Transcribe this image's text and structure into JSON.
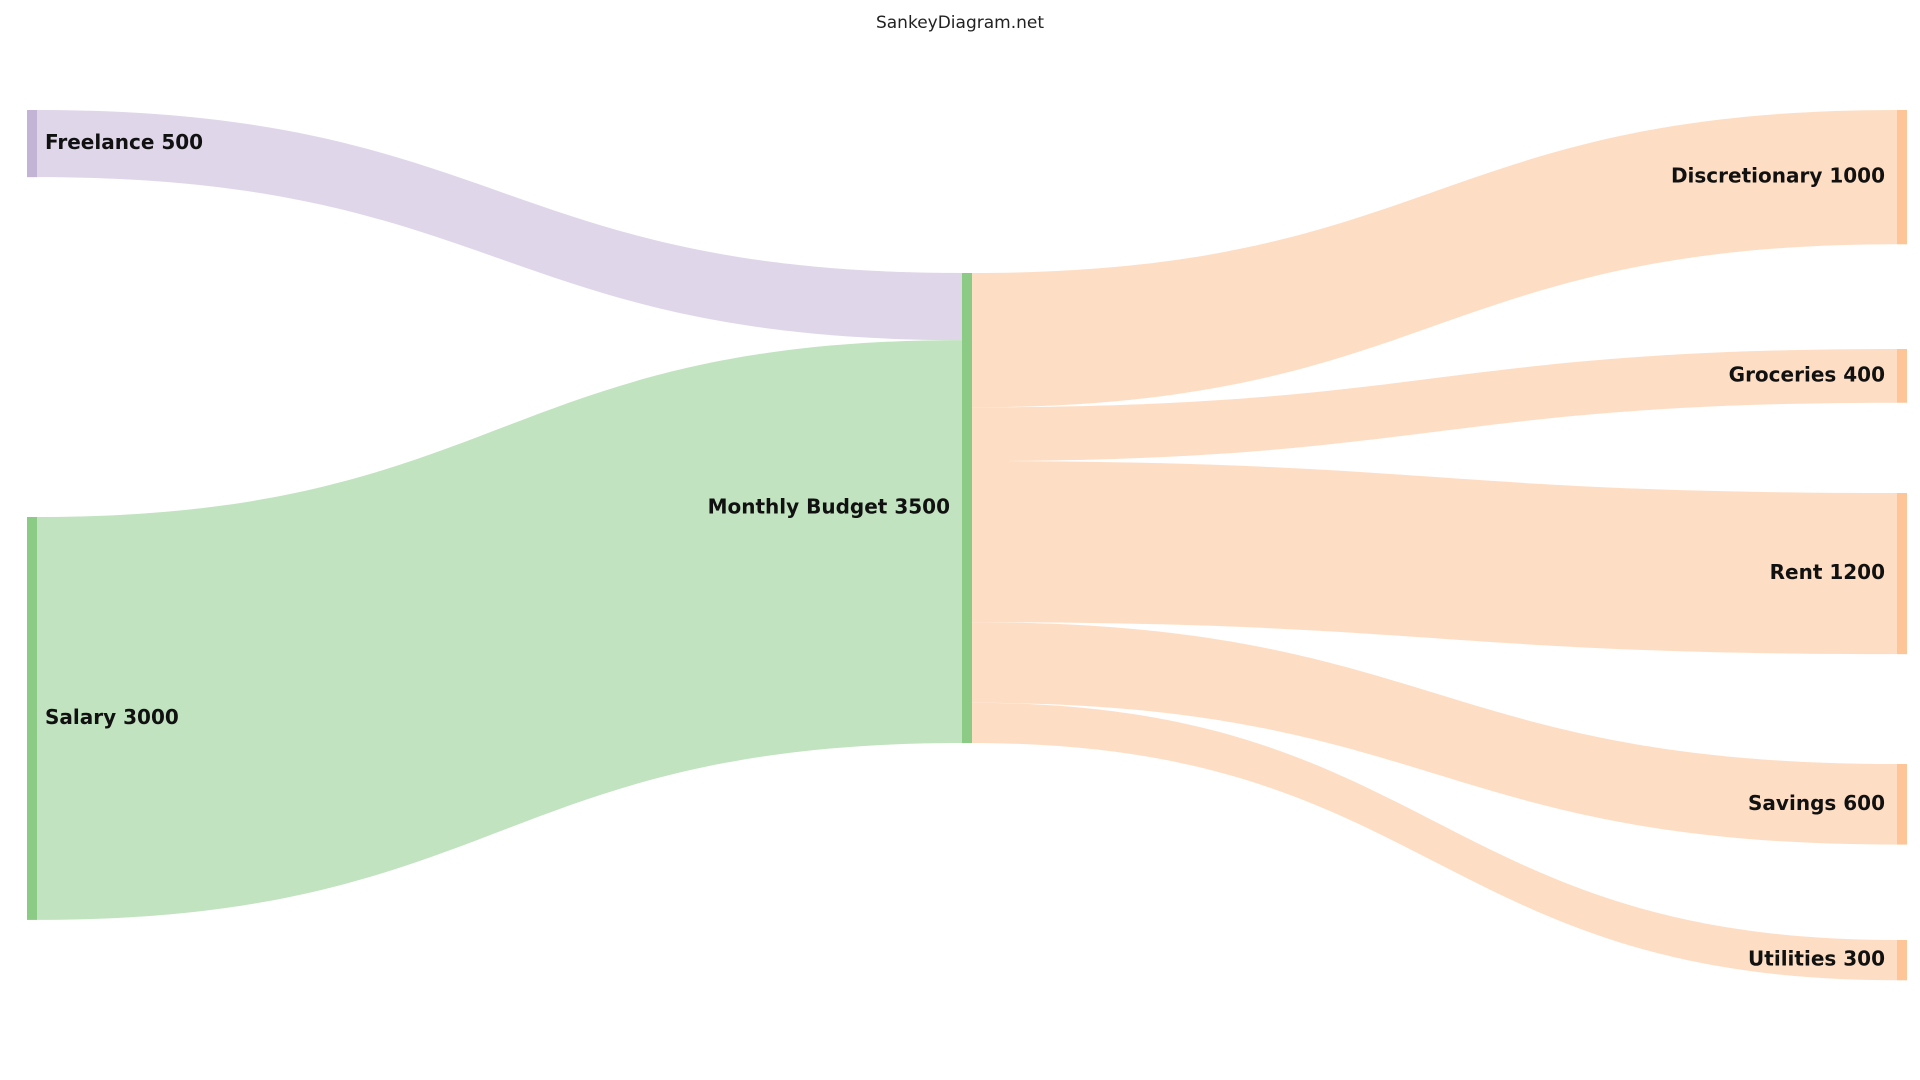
{
  "watermark": "SankeyDiagram.net",
  "nodes": [
    {
      "id": "freelance",
      "label": "Freelance 500",
      "column": 0,
      "color": "#c3b4d6"
    },
    {
      "id": "salary",
      "label": "Salary 3000",
      "column": 0,
      "color": "#8bcb85"
    },
    {
      "id": "budget",
      "label": "Monthly Budget 3500",
      "column": 1,
      "color": "#8bcb85"
    },
    {
      "id": "discretionary",
      "label": "Discretionary 1000",
      "column": 2,
      "color": "#fdc598"
    },
    {
      "id": "groceries",
      "label": "Groceries 400",
      "column": 2,
      "color": "#fdc598"
    },
    {
      "id": "rent",
      "label": "Rent 1200",
      "column": 2,
      "color": "#fdc598"
    },
    {
      "id": "savings",
      "label": "Savings 600",
      "column": 2,
      "color": "#fdc598"
    },
    {
      "id": "utilities",
      "label": "Utilities 300",
      "column": 2,
      "color": "#fdc598"
    }
  ],
  "links": [
    {
      "source": "freelance",
      "target": "budget",
      "value": 500,
      "color": "#e0d6ea"
    },
    {
      "source": "salary",
      "target": "budget",
      "value": 3000,
      "color": "#c1e3c0"
    },
    {
      "source": "budget",
      "target": "discretionary",
      "value": 1000,
      "color": "#fddec4"
    },
    {
      "source": "budget",
      "target": "groceries",
      "value": 400,
      "color": "#fddec4"
    },
    {
      "source": "budget",
      "target": "rent",
      "value": 1200,
      "color": "#fddec4"
    },
    {
      "source": "budget",
      "target": "savings",
      "value": 600,
      "color": "#fddec4"
    },
    {
      "source": "budget",
      "target": "utilities",
      "value": 300,
      "color": "#fddec4"
    }
  ]
}
